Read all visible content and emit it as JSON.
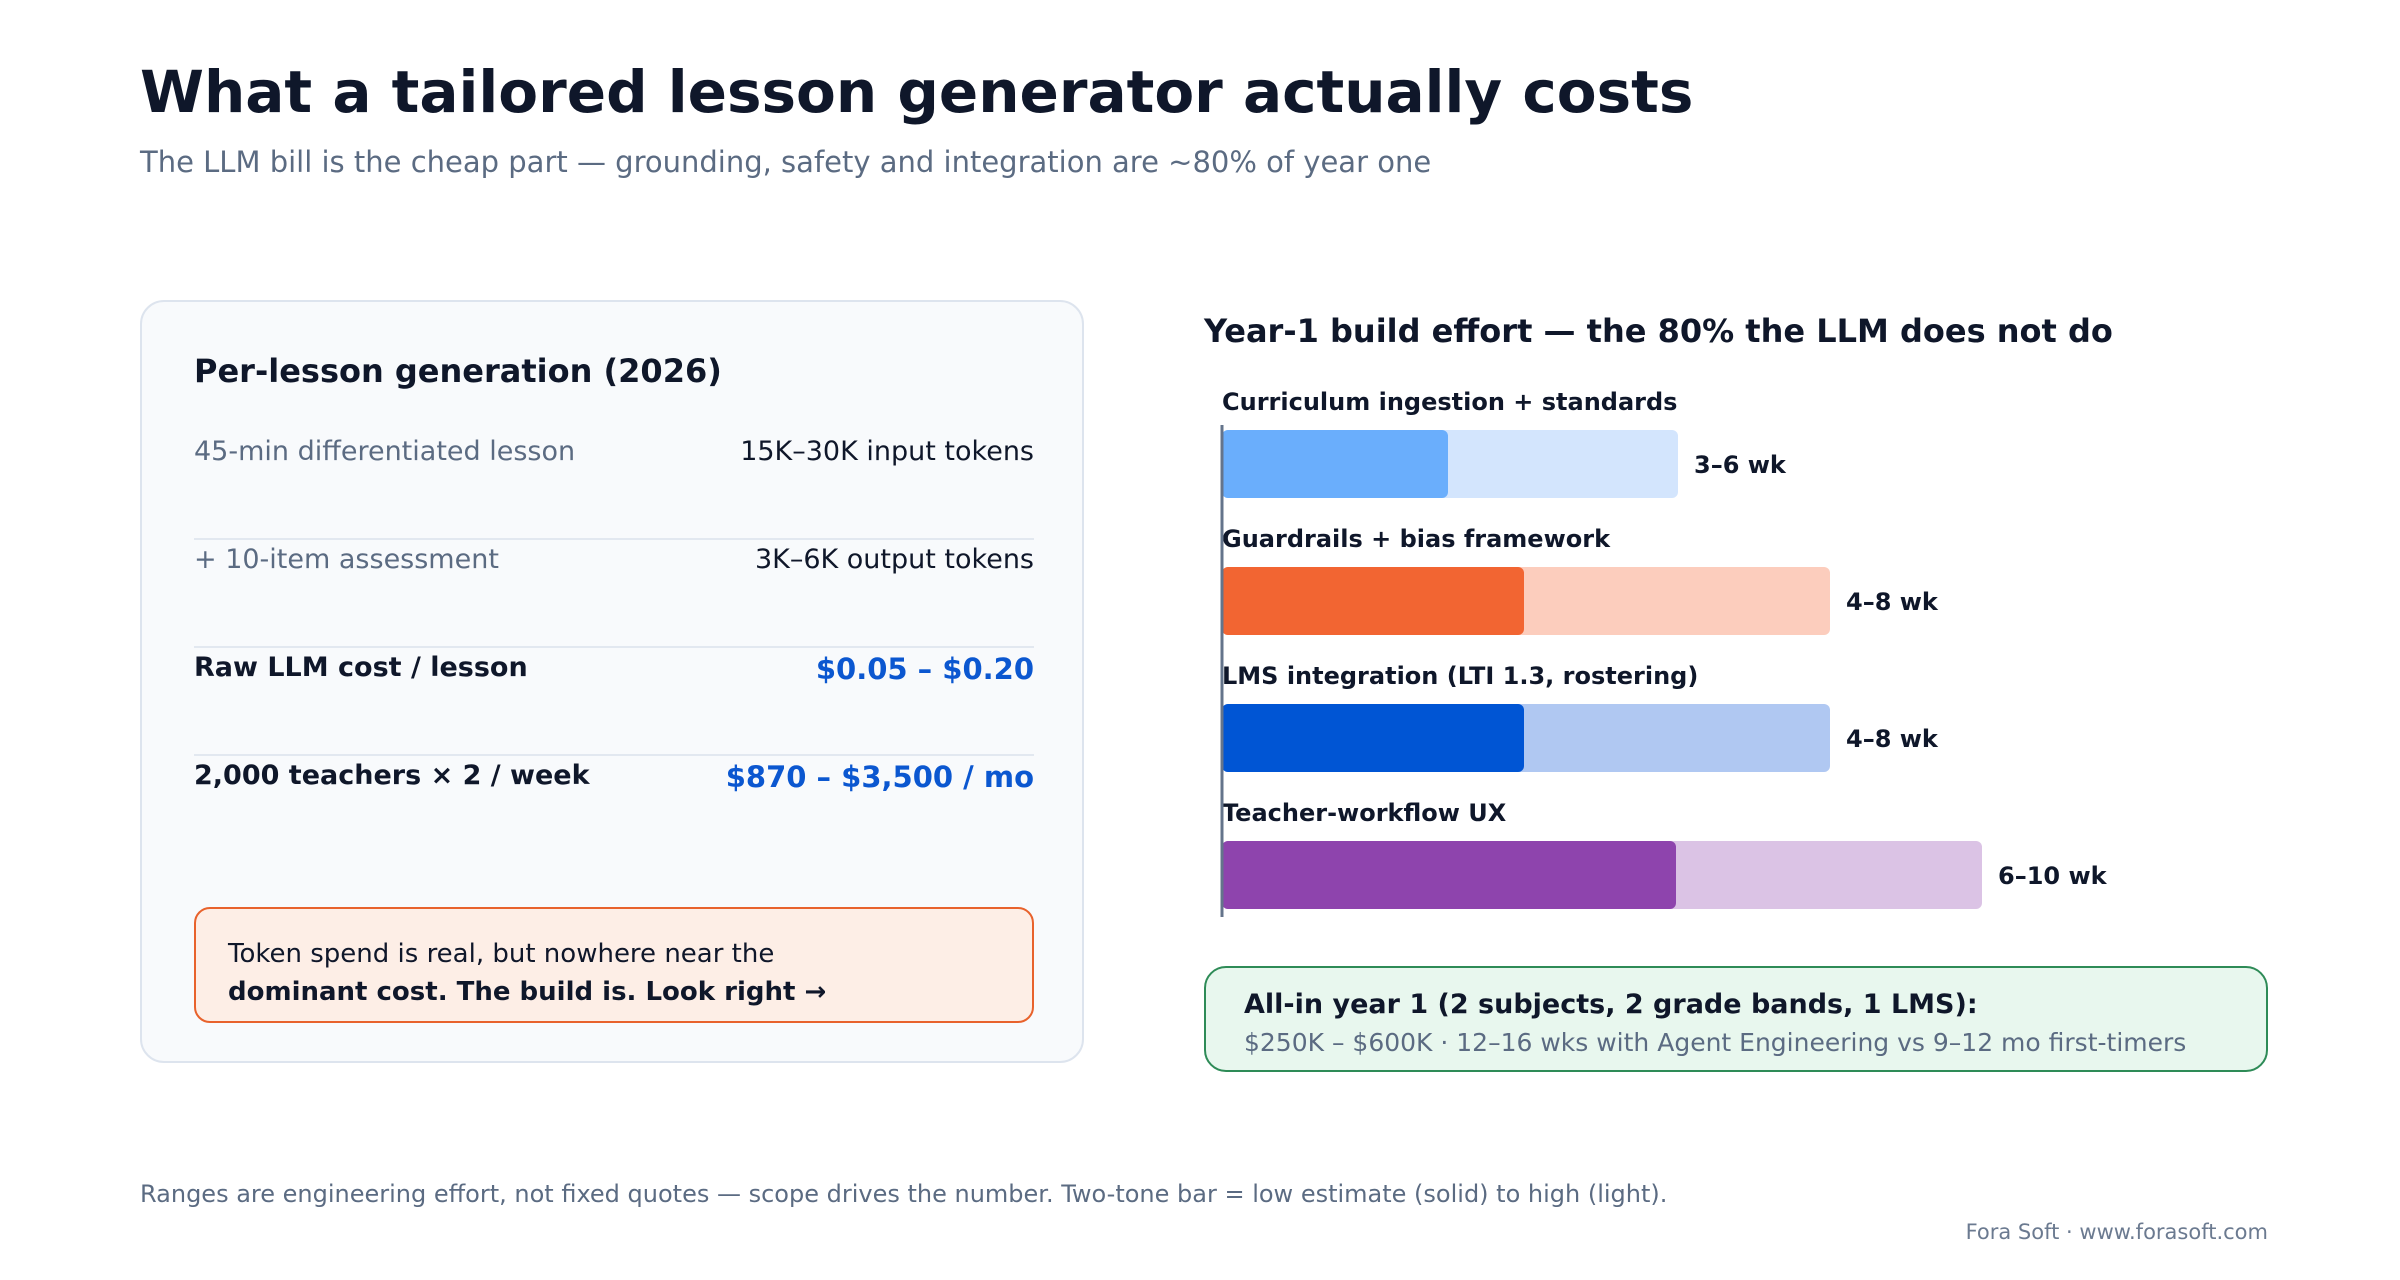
{
  "header": {
    "title": "What a tailored lesson generator actually costs",
    "subtitle": "The LLM bill is the cheap part — grounding, safety and integration are ~80% of year one"
  },
  "cost_card": {
    "title": "Per-lesson generation (2026)",
    "rows": [
      {
        "label": "45-min differentiated lesson",
        "value": "15K–30K input tokens"
      },
      {
        "label": "+ 10-item assessment",
        "value": "3K–6K output tokens"
      },
      {
        "label": "Raw LLM cost / lesson",
        "value": "$0.05 – $0.20"
      },
      {
        "label": "2,000 teachers × 2 / week",
        "value": "$870 – $3,500 / mo"
      }
    ],
    "note_line1": "Token spend is real, but nowhere near the",
    "note_line2": "dominant cost. The build is. Look right →"
  },
  "chart_data": {
    "type": "bar",
    "title": "Year-1 build effort — the 80% the LLM does not do",
    "orientation": "horizontal",
    "unit": "weeks",
    "categories": [
      "Curriculum ingestion + standards",
      "Guardrails + bias framework",
      "LMS integration (LTI 1.3, rostering)",
      "Teacher-workflow UX"
    ],
    "series": [
      {
        "values": [
          3,
          4,
          4,
          6
        ]
      },
      {
        "values": [
          6,
          8,
          8,
          10
        ]
      }
    ],
    "value_labels": [
      "3–6 wk",
      "4–8 wk",
      "4–8 wk",
      "6–10 wk"
    ],
    "colors": {
      "low": [
        "#6aaefc",
        "#f26532",
        "#0055d4",
        "#8e44ad"
      ],
      "high": [
        "#d3e5fd",
        "#fccdbd",
        "#b0c8f2",
        "#dbc3e5"
      ]
    },
    "xlim": [
      0,
      10
    ]
  },
  "summary": {
    "heading": "All-in year 1 (2 subjects, 2 grade bands, 1 LMS):",
    "detail": "$250K – $600K · 12–16 wks with Agent Engineering vs 9–12 mo first-timers"
  },
  "footer": {
    "footnote": "Ranges are engineering effort, not fixed quotes — scope drives the number. Two-tone bar = low estimate (solid) to high (light).",
    "credit": "Fora Soft · www.forasoft.com"
  }
}
